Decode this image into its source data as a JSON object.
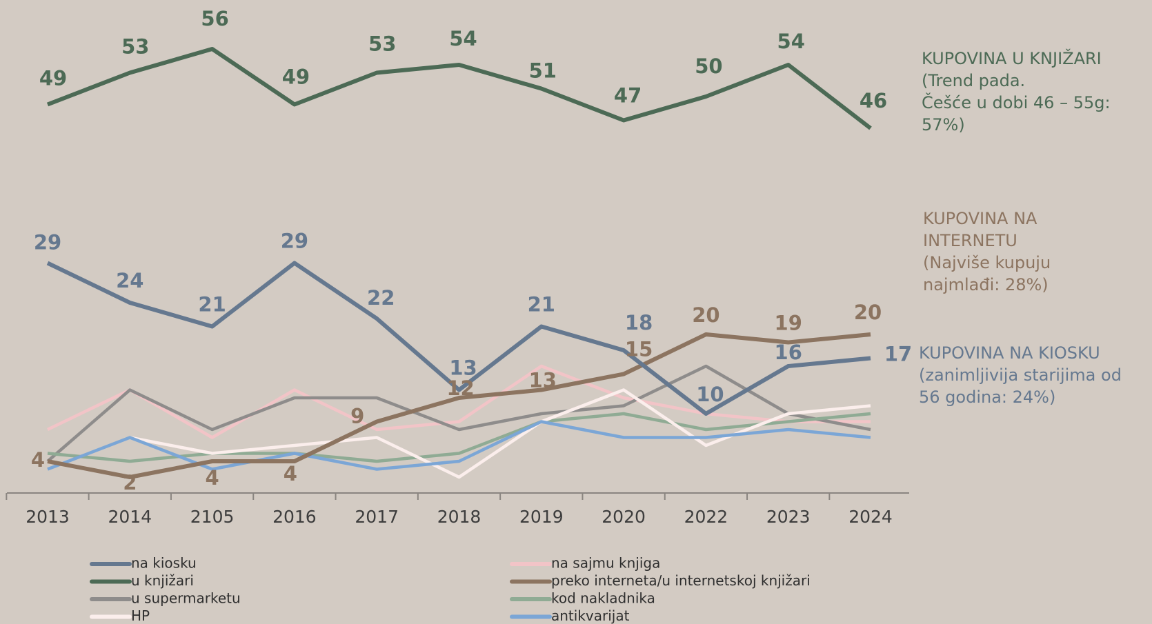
{
  "chart_data": {
    "type": "line",
    "categories": [
      "2013",
      "2014",
      "2105",
      "2016",
      "2017",
      "2018",
      "2019",
      "2020",
      "2022",
      "2023",
      "2024"
    ],
    "ylim": [
      0,
      62
    ],
    "series": [
      {
        "name": "na kiosku",
        "color": "#65788f",
        "values": [
          29,
          24,
          21,
          29,
          22,
          13,
          21,
          18,
          10,
          16,
          17
        ]
      },
      {
        "name": "na sajmu knjiga",
        "color": "#f2c4c7",
        "values": [
          8,
          13,
          7,
          13,
          8,
          9,
          16,
          12,
          10,
          9,
          9
        ]
      },
      {
        "name": "u knjižari",
        "color": "#4c6a55",
        "values": [
          49,
          53,
          56,
          49,
          53,
          54,
          51,
          47,
          50,
          54,
          46
        ]
      },
      {
        "name": "preko interneta/u internetskoj knjižari",
        "color": "#8c7460",
        "values": [
          4,
          2,
          4,
          4,
          9,
          12,
          13,
          15,
          20,
          19,
          20
        ]
      },
      {
        "name": "u supermarketu",
        "color": "#8e8c8b",
        "values": [
          4,
          13,
          8,
          12,
          12,
          8,
          10,
          11,
          16,
          10,
          8
        ]
      },
      {
        "name": "kod nakladnika",
        "color": "#8fab94",
        "values": [
          5,
          4,
          5,
          5,
          4,
          5,
          9,
          10,
          8,
          9,
          10
        ]
      },
      {
        "name": "HP",
        "color": "#fbeeec",
        "values": [
          null,
          7,
          5,
          6,
          7,
          2,
          9,
          13,
          6,
          10,
          11
        ]
      },
      {
        "name": "antikvarijat",
        "color": "#7ba6d6",
        "values": [
          3,
          7,
          3,
          5,
          3,
          4,
          9,
          7,
          7,
          8,
          7
        ]
      }
    ],
    "annotations": [
      {
        "lines": [
          "KUPOVINA U KNJIŽARI",
          "(Trend pada.",
          "Češće u dobi 46 – 55g:",
          "57%)"
        ],
        "color": "#4c6a55"
      },
      {
        "lines": [
          "KUPOVINA NA",
          "INTERNETU",
          "(Najviše kupuju",
          "najmlađi: 28%)"
        ],
        "color": "#8c7460"
      },
      {
        "lines": [
          "KUPOVINA NA KIOSKU",
          "(zanimljivija starijima od",
          "56 godina: 24%)"
        ],
        "color": "#65788f"
      }
    ]
  }
}
